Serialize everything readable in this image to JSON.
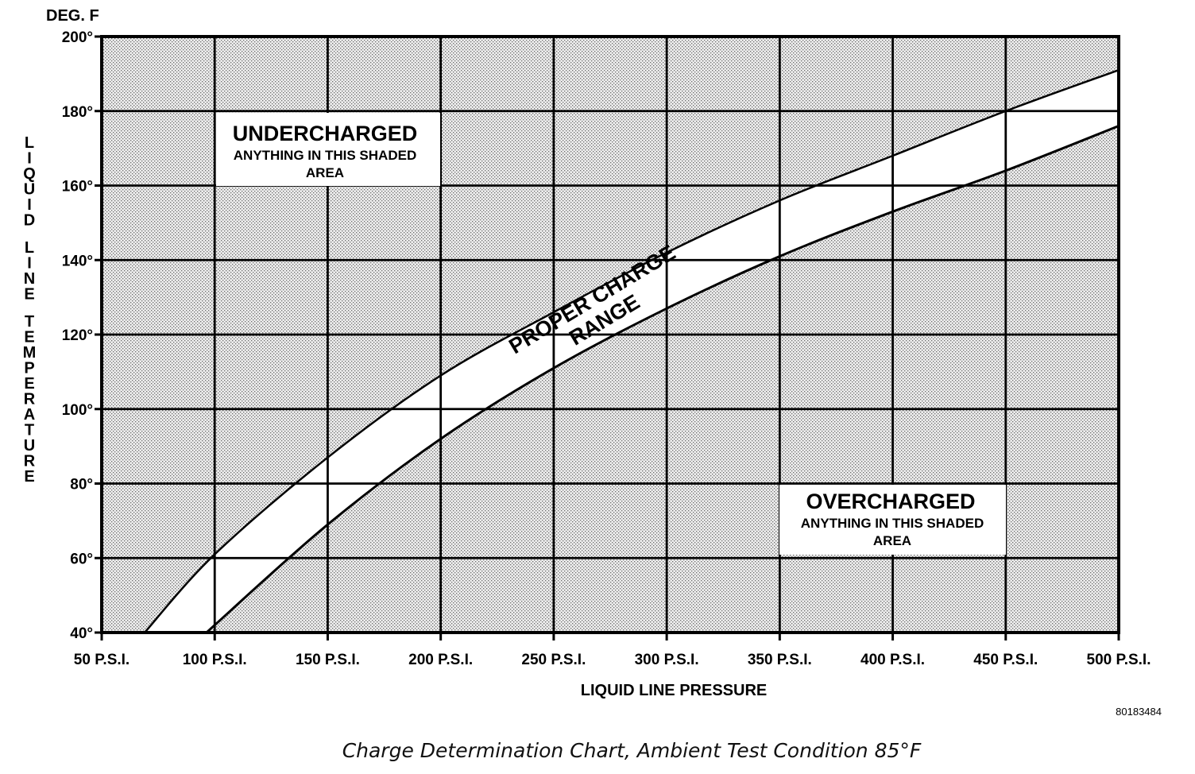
{
  "chart_data": {
    "type": "area",
    "x_unit_label": "DEG. F",
    "ylabel": "LIQUID LINE TEMPERATURE",
    "xlabel": "LIQUID LINE PRESSURE",
    "x_ticks": [
      "50 P.S.I.",
      "100 P.S.I.",
      "150 P.S.I.",
      "200 P.S.I.",
      "250 P.S.I.",
      "300 P.S.I.",
      "350 P.S.I.",
      "400 P.S.I.",
      "450 P.S.I.",
      "500 P.S.I."
    ],
    "y_ticks": [
      "40°",
      "60°",
      "80°",
      "100°",
      "120°",
      "140°",
      "160°",
      "180°",
      "200°"
    ],
    "xlim": [
      50,
      500
    ],
    "ylim": [
      40,
      200
    ],
    "grid": true,
    "upper_boundary": {
      "x": [
        69,
        100,
        150,
        200,
        250,
        300,
        350,
        400,
        450,
        500
      ],
      "y": [
        40,
        61,
        87,
        109,
        126,
        142,
        156,
        168,
        180,
        191
      ]
    },
    "lower_boundary": {
      "x": [
        97,
        100,
        150,
        200,
        250,
        300,
        350,
        400,
        450,
        500
      ],
      "y": [
        40,
        42,
        69,
        92,
        111,
        127,
        141,
        153,
        164,
        176
      ]
    },
    "regions": [
      {
        "name": "UNDERCHARGED",
        "note": "ANYTHING IN THIS SHADED AREA",
        "shaded": true
      },
      {
        "name": "PROPER CHARGE RANGE",
        "shaded": false
      },
      {
        "name": "OVERCHARGED",
        "note": "ANYTHING IN THIS SHADED AREA",
        "shaded": true
      }
    ],
    "annotations": {
      "undercharged_title": "UNDERCHARGED",
      "undercharged_line1": "ANYTHING IN THIS SHADED",
      "undercharged_line2": "AREA",
      "overcharged_title": "OVERCHARGED",
      "overcharged_line1": "ANYTHING IN THIS SHADED",
      "overcharged_line2": "AREA",
      "band_line1": "PROPER CHARGE",
      "band_line2": "RANGE"
    },
    "figure_id": "80183484"
  },
  "caption": "Charge Determination Chart, Ambient Test Condition 85°F"
}
